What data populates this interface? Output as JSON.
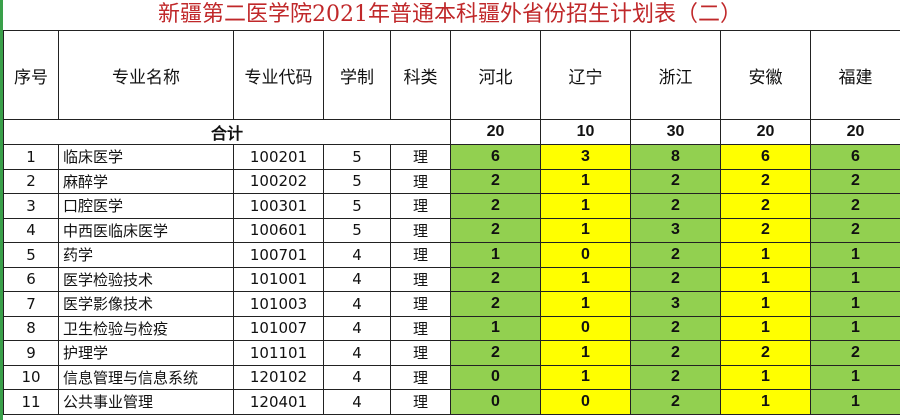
{
  "title": "新疆第二医学院2021年普通本科疆外省份招生计划表（二）",
  "colors": {
    "title": "#c0282a",
    "green": "#92d050",
    "yellow": "#ffff00"
  },
  "headers": [
    "序号",
    "专业名称",
    "专业代码",
    "学制",
    "科类",
    "河北",
    "辽宁",
    "浙江",
    "安徽",
    "福建"
  ],
  "total": {
    "label": "合计",
    "values": [
      "20",
      "10",
      "30",
      "20",
      "20"
    ]
  },
  "rows": [
    {
      "no": "1",
      "name": "临床医学",
      "code": "100201",
      "years": "5",
      "type": "理",
      "values": [
        "6",
        "3",
        "8",
        "6",
        "6"
      ]
    },
    {
      "no": "2",
      "name": "麻醉学",
      "code": "100202",
      "years": "5",
      "type": "理",
      "values": [
        "2",
        "1",
        "2",
        "2",
        "2"
      ]
    },
    {
      "no": "3",
      "name": "口腔医学",
      "code": "100301",
      "years": "5",
      "type": "理",
      "values": [
        "2",
        "1",
        "2",
        "2",
        "2"
      ]
    },
    {
      "no": "4",
      "name": "中西医临床医学",
      "code": "100601",
      "years": "5",
      "type": "理",
      "values": [
        "2",
        "1",
        "3",
        "2",
        "2"
      ]
    },
    {
      "no": "5",
      "name": "药学",
      "code": "100701",
      "years": "4",
      "type": "理",
      "values": [
        "1",
        "0",
        "2",
        "1",
        "1"
      ]
    },
    {
      "no": "6",
      "name": "医学检验技术",
      "code": "101001",
      "years": "4",
      "type": "理",
      "values": [
        "2",
        "1",
        "2",
        "1",
        "1"
      ]
    },
    {
      "no": "7",
      "name": "医学影像技术",
      "code": "101003",
      "years": "4",
      "type": "理",
      "values": [
        "2",
        "1",
        "3",
        "1",
        "1"
      ]
    },
    {
      "no": "8",
      "name": "卫生检验与检疫",
      "code": "101007",
      "years": "4",
      "type": "理",
      "values": [
        "1",
        "0",
        "2",
        "1",
        "1"
      ]
    },
    {
      "no": "9",
      "name": "护理学",
      "code": "101101",
      "years": "4",
      "type": "理",
      "values": [
        "2",
        "1",
        "2",
        "2",
        "2"
      ]
    },
    {
      "no": "10",
      "name": "信息管理与信息系统",
      "code": "120102",
      "years": "4",
      "type": "理",
      "values": [
        "0",
        "1",
        "2",
        "1",
        "1"
      ]
    },
    {
      "no": "11",
      "name": "公共事业管理",
      "code": "120401",
      "years": "4",
      "type": "理",
      "values": [
        "0",
        "0",
        "2",
        "1",
        "1"
      ]
    }
  ]
}
